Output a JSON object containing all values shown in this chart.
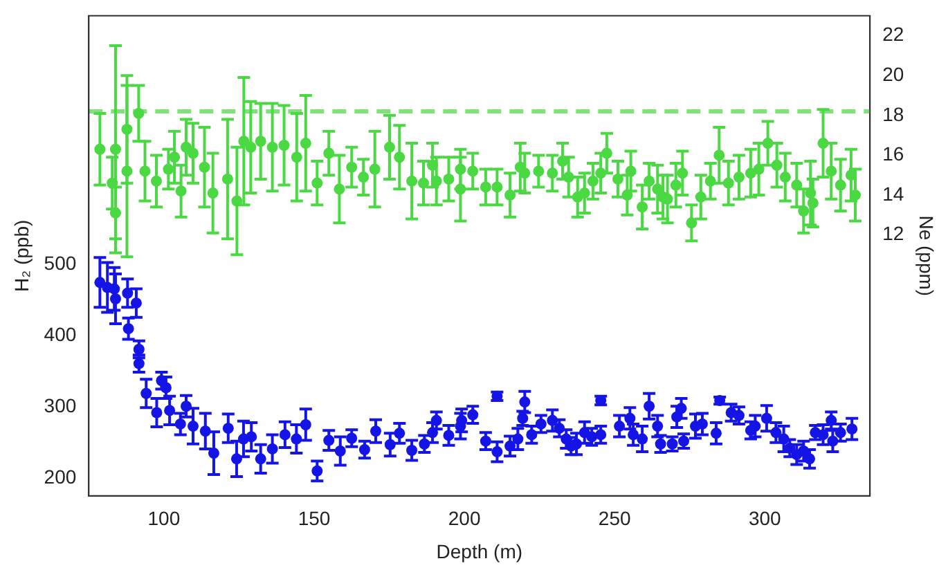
{
  "chart_data": {
    "type": "scatter",
    "xlabel": "Depth (m)",
    "ylabel": "H₂ (ppb)",
    "y2label": "Ne (ppm)",
    "marker": "circle",
    "grid": false,
    "legend": false,
    "xlim": [
      75,
      335
    ],
    "xticks": [
      100,
      150,
      200,
      250,
      300
    ],
    "ylim": [
      175,
      850
    ],
    "yticks": [
      200,
      300,
      400,
      500
    ],
    "y2lim": [
      -1.1,
      23
    ],
    "y2ticks": [
      12,
      14,
      16,
      18,
      20,
      22
    ],
    "ref_lines": [
      {
        "axis": "y2",
        "value": 18.2,
        "color": "#7fe07c",
        "line_style": "dashed"
      }
    ],
    "series": [
      {
        "color": "#4ad843",
        "axis": "y2",
        "x": [
          78.7,
          82.8,
          83.9,
          83.9,
          87.7,
          87.7,
          91.6,
          93.7,
          97.5,
          101.5,
          103.5,
          105.7,
          107.4,
          109.7,
          113.5,
          116.3,
          121.2,
          124.3,
          126.6,
          128.9,
          132.2,
          136.1,
          140.0,
          144.2,
          147.2,
          151.0,
          154.9,
          158.4,
          162.5,
          166.4,
          170.2,
          175.1,
          178.4,
          182.5,
          186.4,
          189.4,
          190.7,
          194.8,
          198.7,
          198.7,
          202.8,
          207.1,
          210.9,
          215.2,
          218.6,
          220.1,
          224.7,
          229.3,
          232.7,
          234.7,
          237.7,
          240.0,
          242.8,
          245.4,
          247.4,
          251.1,
          254.2,
          255.4,
          259.2,
          261.5,
          264.3,
          266.1,
          267.6,
          270.4,
          272.6,
          275.6,
          278.7,
          281.9,
          284.8,
          287.9,
          291.4,
          295.3,
          298.0,
          301.0,
          304.0,
          306.8,
          310.6,
          312.9,
          315.2,
          316.0,
          319.4,
          322.1,
          325.2,
          328.7,
          330.1
        ],
        "values": [
          16.3,
          14.6,
          16.3,
          13.1,
          17.3,
          15.2,
          18.1,
          15.2,
          14.7,
          15.3,
          15.9,
          14.2,
          16.4,
          16.1,
          15.4,
          14.1,
          14.8,
          13.7,
          16.7,
          16.4,
          16.7,
          16.4,
          16.5,
          15.9,
          16.6,
          14.6,
          16.1,
          14.3,
          15.4,
          14.9,
          15.3,
          16.4,
          15.9,
          14.7,
          14.6,
          15.5,
          14.7,
          14.8,
          15.3,
          14.3,
          15.2,
          14.4,
          14.4,
          14.0,
          15.4,
          15.1,
          15.2,
          15.1,
          15.7,
          14.9,
          13.9,
          14.1,
          14.7,
          15.1,
          16.1,
          14.8,
          14.0,
          15.2,
          13.4,
          14.7,
          14.3,
          13.9,
          13.8,
          14.5,
          15.1,
          12.6,
          13.9,
          14.7,
          16.0,
          14.6,
          14.9,
          15.1,
          15.3,
          16.6,
          15.5,
          14.9,
          14.5,
          13.2,
          14.1,
          13.6,
          16.6,
          15.2,
          14.5,
          15.0,
          14.0
        ],
        "errors": [
          1.8,
          1.3,
          5.2,
          1.3,
          2.7,
          4.3,
          1.4,
          1.5,
          1.3,
          1.0,
          1.3,
          1.3,
          1.4,
          1.5,
          2.0,
          2.0,
          3.0,
          2.7,
          3.2,
          2.3,
          1.9,
          2.2,
          2.0,
          2.2,
          2.4,
          1.1,
          1.1,
          1.7,
          1.0,
          0.9,
          1.9,
          1.6,
          1.6,
          1.9,
          1.1,
          1.1,
          1.2,
          1.1,
          1.0,
          1.6,
          0.9,
          0.9,
          0.9,
          1.1,
          1.2,
          1.0,
          0.8,
          0.9,
          0.9,
          1.0,
          1.0,
          1.0,
          0.9,
          1.0,
          1.0,
          0.9,
          1.0,
          1.0,
          1.1,
          0.9,
          1.2,
          1.1,
          1.2,
          1.1,
          1.1,
          0.9,
          1.1,
          0.9,
          1.4,
          1.1,
          1.1,
          1.2,
          1.3,
          1.1,
          1.1,
          1.2,
          1.1,
          1.1,
          1.6,
          1.2,
          1.7,
          1.4,
          1.3,
          1.3,
          1.3
        ]
      },
      {
        "color": "#1414e6",
        "axis": "y",
        "x": [
          78.7,
          81.2,
          83.5,
          83.9,
          87.9,
          88.2,
          90.8,
          91.7,
          91.7,
          94.1,
          97.6,
          99.2,
          100.7,
          101.9,
          105.5,
          107.4,
          109.7,
          113.8,
          116.6,
          121.4,
          124.2,
          126.5,
          129.1,
          132.2,
          136.1,
          140.3,
          144.1,
          147.2,
          151.0,
          154.9,
          158.7,
          162.5,
          166.8,
          170.5,
          175.3,
          178.4,
          182.5,
          186.7,
          189.4,
          190.7,
          194.8,
          198.7,
          199.1,
          202.8,
          207.1,
          210.9,
          210.9,
          215.2,
          217.8,
          219.4,
          220.1,
          222.4,
          225.5,
          229.3,
          231.6,
          233.9,
          235.5,
          237.3,
          240.0,
          242.4,
          245.4,
          245.4,
          251.6,
          255.1,
          256.2,
          259.2,
          261.5,
          264.3,
          265.3,
          269.2,
          270.7,
          272.2,
          273.0,
          276.9,
          279.2,
          283.8,
          285.0,
          288.8,
          291.4,
          295.3,
          296.8,
          300.6,
          303.7,
          306.3,
          308.3,
          310.6,
          312.9,
          314.9,
          316.8,
          319.4,
          322.1,
          322.6,
          325.2,
          329.0
        ],
        "values": [
          475,
          468,
          466,
          452,
          460,
          410,
          446,
          381,
          361,
          319,
          292,
          337,
          327,
          295,
          276,
          301,
          273,
          266,
          235,
          270,
          227,
          255,
          258,
          227,
          241,
          261,
          255,
          275,
          210,
          253,
          238,
          256,
          240,
          266,
          247,
          263,
          239,
          248,
          264,
          281,
          260,
          273,
          281,
          289,
          252,
          237,
          315,
          245,
          255,
          284,
          307,
          261,
          276,
          281,
          270,
          255,
          245,
          248,
          264,
          258,
          261,
          309,
          273,
          284,
          261,
          255,
          301,
          273,
          248,
          248,
          286,
          298,
          252,
          273,
          276,
          263,
          309,
          292,
          288,
          267,
          273,
          284,
          264,
          255,
          242,
          233,
          238,
          227,
          264,
          261,
          281,
          252,
          264,
          269
        ],
        "errors": [
          35,
          35,
          30,
          35,
          20,
          15,
          20,
          12,
          12,
          20,
          20,
          12,
          15,
          20,
          15,
          15,
          25,
          25,
          30,
          20,
          25,
          25,
          20,
          20,
          20,
          18,
          20,
          22,
          14,
          14,
          20,
          12,
          12,
          16,
          16,
          14,
          14,
          12,
          14,
          12,
          14,
          18,
          16,
          12,
          12,
          14,
          6,
          14,
          15,
          10,
          15,
          12,
          12,
          15,
          12,
          13,
          12,
          15,
          15,
          12,
          12,
          6,
          15,
          15,
          15,
          18,
          18,
          15,
          12,
          10,
          15,
          14,
          10,
          17,
          15,
          15,
          5,
          12,
          12,
          12,
          15,
          18,
          14,
          18,
          12,
          14,
          14,
          13,
          10,
          14,
          12,
          15,
          12,
          15
        ]
      }
    ]
  }
}
